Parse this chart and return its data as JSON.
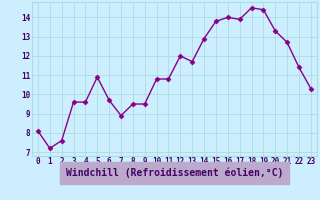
{
  "x": [
    0,
    1,
    2,
    3,
    4,
    5,
    6,
    7,
    8,
    9,
    10,
    11,
    12,
    13,
    14,
    15,
    16,
    17,
    18,
    19,
    20,
    21,
    22,
    23
  ],
  "y": [
    8.1,
    7.2,
    7.6,
    9.6,
    9.6,
    10.9,
    9.7,
    8.9,
    9.5,
    9.5,
    10.8,
    10.8,
    12.0,
    11.7,
    12.9,
    13.8,
    14.0,
    13.9,
    14.5,
    14.4,
    13.3,
    12.7,
    11.4,
    10.3
  ],
  "line_color": "#880088",
  "marker": "D",
  "marker_size": 2.5,
  "line_width": 1.0,
  "bg_color": "#cceeff",
  "grid_color": "#aadddd",
  "xlabel": "Windchill (Refroidissement éolien,°C)",
  "xlim": [
    -0.5,
    23.5
  ],
  "ylim": [
    6.8,
    14.8
  ],
  "yticks": [
    7,
    8,
    9,
    10,
    11,
    12,
    13,
    14
  ],
  "xticks": [
    0,
    1,
    2,
    3,
    4,
    5,
    6,
    7,
    8,
    9,
    10,
    11,
    12,
    13,
    14,
    15,
    16,
    17,
    18,
    19,
    20,
    21,
    22,
    23
  ],
  "tick_label_fontsize": 5.5,
  "xlabel_fontsize": 7.0,
  "axis_label_color": "#440066",
  "tick_color": "#440066",
  "xlabel_bg": "#9955aa",
  "spine_color": "#aadddd"
}
